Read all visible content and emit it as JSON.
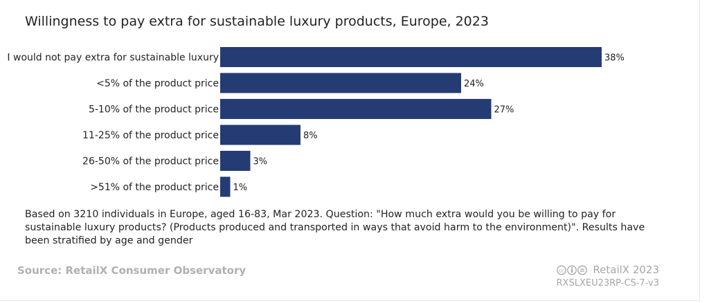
{
  "chart_data": {
    "type": "bar",
    "orientation": "horizontal",
    "title": "Willingness to pay extra for sustainable luxury products, Europe, 2023",
    "categories": [
      "I would not pay extra for sustainable luxury",
      "<5% of the product price",
      "5-10% of the product price",
      "11-25% of the product price",
      "26-50% of the product price",
      ">51% of the product price"
    ],
    "values": [
      38,
      24,
      27,
      8,
      3,
      1
    ],
    "value_labels": [
      "38%",
      "24%",
      "27%",
      "8%",
      "3%",
      "1%"
    ],
    "unit": "%",
    "xlim": [
      0,
      38
    ],
    "bar_color": "#253b73",
    "grid": false,
    "legend": "none"
  },
  "footer": {
    "note": "Based on 3210 individuals in Europe, aged 16-83, Mar 2023. Question: \"How much extra would you be willing to pay for sustainable luxury products? (Products produced and transported in ways that avoid harm to the environment)\". Results have been stratified by age and gender",
    "source": "Source: RetailX Consumer Observatory",
    "brand": "RetailX 2023",
    "code": "RXSLXEU23RP-CS-7-v3",
    "license_icon": "creative-commons-by-nc-nd-icon"
  }
}
